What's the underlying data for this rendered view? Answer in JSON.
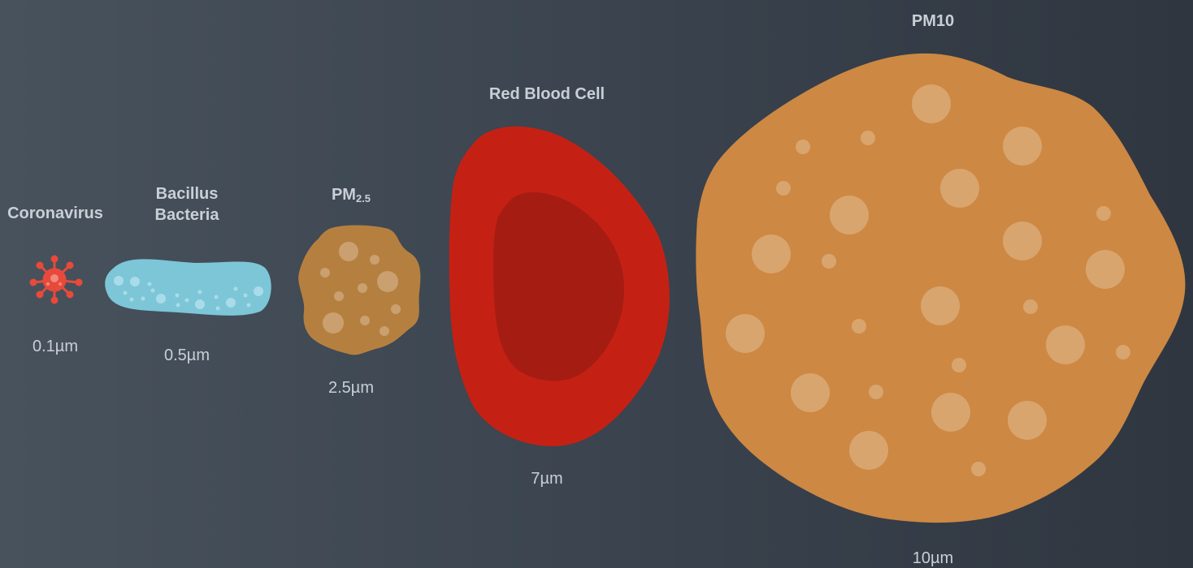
{
  "particles": [
    {
      "id": "coronavirus",
      "name": "Coronavirus",
      "size": "0.1µm"
    },
    {
      "id": "bacillus",
      "name_line1": "Bacillus",
      "name_line2": "Bacteria",
      "size": "0.5µm"
    },
    {
      "id": "pm25",
      "name": "PM",
      "name_sub": "2.5",
      "size": "2.5µm"
    },
    {
      "id": "rbc",
      "name": "Red Blood Cell",
      "size": "7µm"
    },
    {
      "id": "pm10",
      "name": "PM10",
      "size": "10µm"
    }
  ],
  "colors": {
    "coronavirus": "#e8493a",
    "bacillus": "#7cc6d8",
    "pm25": "#b5803f",
    "rbc_outer": "#c42114",
    "rbc_inner": "#a51c12",
    "pm10": "#cd8843",
    "label": "#c9cfd6"
  }
}
